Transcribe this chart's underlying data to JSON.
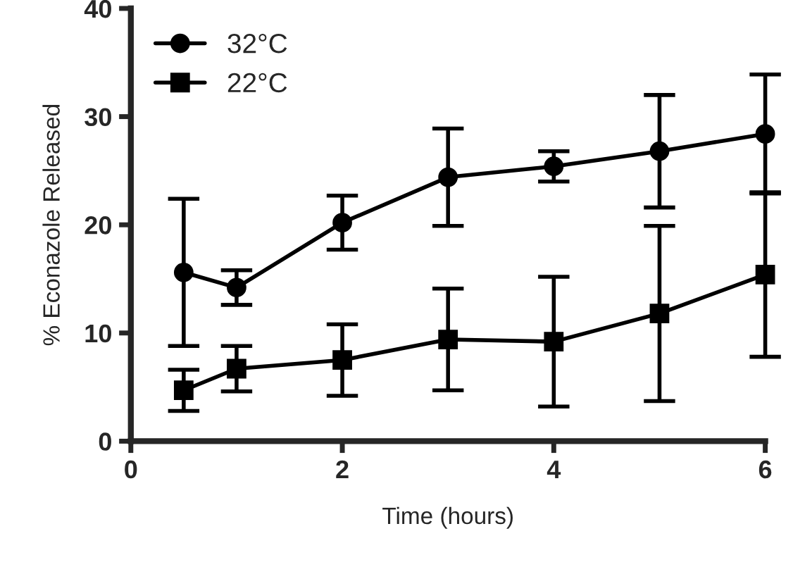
{
  "chart_data": {
    "type": "line",
    "xlabel": "Time (hours)",
    "ylabel": "% Econazole Released",
    "x": [
      0.5,
      1,
      2,
      3,
      4,
      5,
      6
    ],
    "series": [
      {
        "name": "32°C",
        "color": "#000000",
        "marker": "circle",
        "values": [
          15.6,
          14.2,
          20.2,
          24.4,
          25.4,
          26.8,
          28.4
        ],
        "errors": [
          6.8,
          1.6,
          2.5,
          4.5,
          1.4,
          5.2,
          5.5
        ]
      },
      {
        "name": "22°C",
        "color": "#000000",
        "marker": "square",
        "values": [
          4.7,
          6.7,
          7.5,
          9.4,
          9.2,
          11.8,
          15.4
        ],
        "errors": [
          1.9,
          2.1,
          3.3,
          4.7,
          6.0,
          8.1,
          7.6
        ]
      }
    ],
    "xlim": [
      0,
      6
    ],
    "xticks": [
      0,
      2,
      4,
      6
    ],
    "ylim": [
      0,
      40
    ],
    "yticks": [
      0,
      10,
      20,
      30,
      40
    ],
    "grid": false,
    "legend": "top left",
    "line_style": "solid"
  }
}
